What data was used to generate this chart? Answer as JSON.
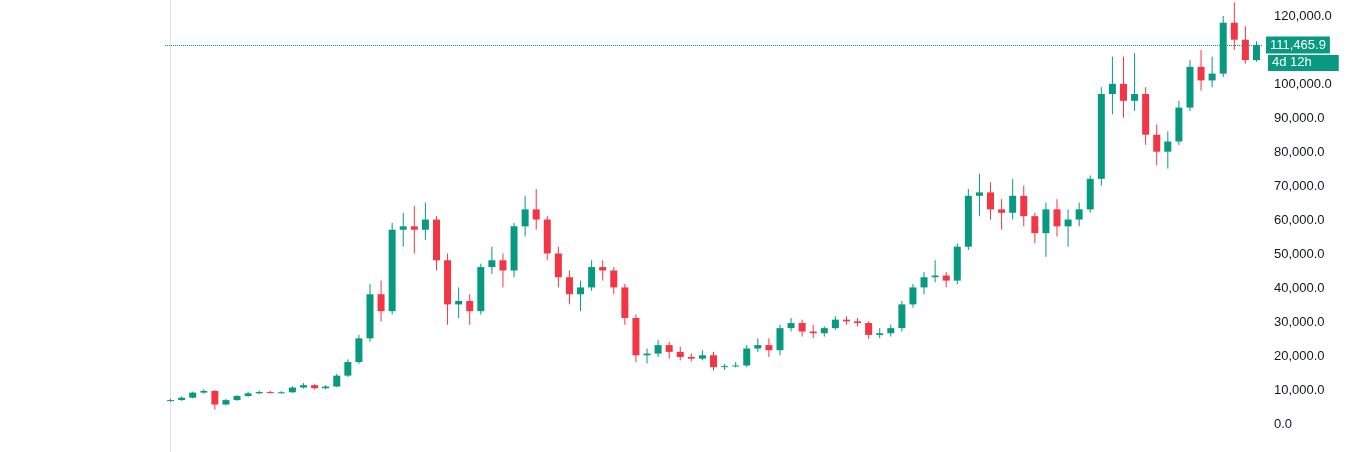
{
  "chart_data": {
    "type": "candlestick",
    "categories": [
      null,
      null,
      null,
      null,
      null,
      null,
      null,
      null,
      null,
      null,
      null,
      null,
      null,
      null,
      null,
      null,
      null,
      null,
      null,
      null,
      null,
      null,
      null,
      null,
      null,
      null,
      null,
      null,
      null,
      null,
      null,
      null,
      null,
      null,
      null,
      null,
      null,
      null,
      null,
      null,
      null,
      null,
      null,
      null,
      null,
      null,
      null,
      null,
      null,
      null,
      null,
      null,
      null,
      null,
      null,
      null,
      null,
      null,
      null,
      null,
      null,
      null,
      null,
      null,
      null,
      null,
      null,
      null,
      null,
      null,
      null,
      null,
      null,
      null,
      null,
      null,
      null,
      null,
      null,
      null,
      null,
      null,
      null,
      null,
      null,
      null,
      null,
      null,
      null,
      null,
      null,
      null,
      null,
      null,
      null,
      null,
      null,
      null,
      null
    ],
    "ohlc": [
      [
        6500,
        7200,
        6300,
        6800
      ],
      [
        6800,
        7900,
        6600,
        7500
      ],
      [
        7500,
        9300,
        7300,
        9000
      ],
      [
        9000,
        10000,
        8700,
        9500
      ],
      [
        9500,
        9700,
        4000,
        5500
      ],
      [
        5500,
        7100,
        5200,
        6800
      ],
      [
        6800,
        8300,
        6600,
        8000
      ],
      [
        8000,
        9300,
        7700,
        8800
      ],
      [
        8800,
        9600,
        8500,
        9200
      ],
      [
        9200,
        9500,
        8700,
        9000
      ],
      [
        9000,
        9400,
        8700,
        9100
      ],
      [
        9100,
        10900,
        8900,
        10500
      ],
      [
        10500,
        11800,
        10200,
        11200
      ],
      [
        11200,
        11500,
        9900,
        10300
      ],
      [
        10300,
        11200,
        10000,
        10800
      ],
      [
        10800,
        14500,
        10600,
        14000
      ],
      [
        14000,
        18800,
        13600,
        18000
      ],
      [
        18000,
        26000,
        17500,
        25000
      ],
      [
        25000,
        41000,
        24000,
        38000
      ],
      [
        38000,
        42000,
        30000,
        33000
      ],
      [
        33000,
        59000,
        32000,
        57000
      ],
      [
        57000,
        62000,
        52000,
        58000
      ],
      [
        58000,
        64000,
        50000,
        57000
      ],
      [
        57000,
        65000,
        54000,
        60000
      ],
      [
        60000,
        61000,
        45000,
        48000
      ],
      [
        48000,
        50000,
        29000,
        35000
      ],
      [
        35000,
        40000,
        31000,
        36000
      ],
      [
        36000,
        38000,
        29000,
        33000
      ],
      [
        33000,
        47000,
        32000,
        46000
      ],
      [
        46000,
        52000,
        44000,
        48000
      ],
      [
        48000,
        50000,
        40000,
        45000
      ],
      [
        45000,
        59000,
        43000,
        58000
      ],
      [
        58000,
        67000,
        55000,
        63000
      ],
      [
        63000,
        69000,
        57000,
        60000
      ],
      [
        60000,
        61000,
        48000,
        50000
      ],
      [
        50000,
        52000,
        40000,
        43000
      ],
      [
        43000,
        45000,
        35000,
        38000
      ],
      [
        38000,
        42000,
        33000,
        40000
      ],
      [
        40000,
        48000,
        39000,
        46000
      ],
      [
        46000,
        48000,
        42000,
        45000
      ],
      [
        45000,
        46000,
        38000,
        40000
      ],
      [
        40000,
        41000,
        29000,
        31000
      ],
      [
        31000,
        32000,
        18000,
        20000
      ],
      [
        20000,
        22000,
        17600,
        20500
      ],
      [
        20500,
        24500,
        19500,
        23000
      ],
      [
        23000,
        24000,
        19000,
        21000
      ],
      [
        21000,
        22500,
        18500,
        19500
      ],
      [
        19500,
        20500,
        18200,
        19000
      ],
      [
        19000,
        21500,
        18500,
        20000
      ],
      [
        20000,
        21000,
        15500,
        16500
      ],
      [
        16500,
        17500,
        15700,
        16800
      ],
      [
        16800,
        18000,
        16400,
        17000
      ],
      [
        17000,
        23000,
        16500,
        22000
      ],
      [
        22000,
        25000,
        21000,
        23000
      ],
      [
        23000,
        25000,
        19500,
        21500
      ],
      [
        21500,
        29000,
        20000,
        28000
      ],
      [
        28000,
        31000,
        27000,
        29500
      ],
      [
        29500,
        30500,
        25500,
        27000
      ],
      [
        27000,
        29000,
        25000,
        26500
      ],
      [
        26500,
        28500,
        25500,
        28000
      ],
      [
        28000,
        31500,
        27500,
        30500
      ],
      [
        30500,
        31500,
        29000,
        30000
      ],
      [
        30000,
        31000,
        28500,
        29500
      ],
      [
        29500,
        30000,
        24800,
        26000
      ],
      [
        26000,
        28000,
        25000,
        26500
      ],
      [
        26500,
        29000,
        25500,
        28000
      ],
      [
        28000,
        36000,
        27000,
        35000
      ],
      [
        35000,
        41000,
        34000,
        40000
      ],
      [
        40000,
        44500,
        38000,
        43000
      ],
      [
        43000,
        48000,
        41500,
        43500
      ],
      [
        43500,
        44500,
        40000,
        42000
      ],
      [
        42000,
        53000,
        41000,
        52000
      ],
      [
        52000,
        69000,
        51000,
        67000
      ],
      [
        67000,
        73500,
        61000,
        68000
      ],
      [
        68000,
        71000,
        60000,
        63000
      ],
      [
        63000,
        66000,
        57000,
        62000
      ],
      [
        62000,
        72000,
        60000,
        67000
      ],
      [
        67000,
        70000,
        58000,
        61000
      ],
      [
        61000,
        62000,
        53000,
        56000
      ],
      [
        56000,
        65000,
        49000,
        63000
      ],
      [
        63000,
        66000,
        55000,
        58000
      ],
      [
        58000,
        63000,
        52000,
        60000
      ],
      [
        60000,
        65000,
        58000,
        63000
      ],
      [
        63000,
        73000,
        62000,
        72000
      ],
      [
        72000,
        99000,
        70000,
        97000
      ],
      [
        97000,
        108000,
        91000,
        100000
      ],
      [
        100000,
        108000,
        90000,
        95000
      ],
      [
        95000,
        109000,
        92000,
        97000
      ],
      [
        97000,
        99000,
        82000,
        85000
      ],
      [
        85000,
        88000,
        76000,
        80000
      ],
      [
        80000,
        86000,
        75000,
        83000
      ],
      [
        83000,
        95000,
        82000,
        93000
      ],
      [
        93000,
        107000,
        92000,
        105000
      ],
      [
        105000,
        110000,
        98000,
        101000
      ],
      [
        101000,
        108000,
        99000,
        103000
      ],
      [
        103000,
        120000,
        102000,
        118000
      ],
      [
        118000,
        124000,
        110000,
        113000
      ],
      [
        113000,
        117000,
        106000,
        107000
      ],
      [
        107000,
        112500,
        106500,
        111465.9
      ]
    ],
    "colors": [
      "#089981",
      "#089981",
      "#089981",
      "#089981",
      "#f23645",
      "#089981",
      "#089981",
      "#089981",
      "#089981",
      "#f23645",
      "#089981",
      "#089981",
      "#089981",
      "#f23645",
      "#089981",
      "#089981",
      "#089981",
      "#089981",
      "#089981",
      "#f23645",
      "#089981",
      "#089981",
      "#f23645",
      "#089981",
      "#f23645",
      "#f23645",
      "#089981",
      "#f23645",
      "#089981",
      "#089981",
      "#f23645",
      "#089981",
      "#089981",
      "#f23645",
      "#f23645",
      "#f23645",
      "#f23645",
      "#089981",
      "#089981",
      "#f23645",
      "#f23645",
      "#f23645",
      "#f23645",
      "#089981",
      "#089981",
      "#f23645",
      "#f23645",
      "#f23645",
      "#089981",
      "#f23645",
      "#089981",
      "#089981",
      "#089981",
      "#089981",
      "#f23645",
      "#089981",
      "#089981",
      "#f23645",
      "#f23645",
      "#089981",
      "#089981",
      "#f23645",
      "#f23645",
      "#f23645",
      "#089981",
      "#089981",
      "#089981",
      "#089981",
      "#089981",
      "#089981",
      "#f23645",
      "#089981",
      "#089981",
      "#089981",
      "#f23645",
      "#f23645",
      "#089981",
      "#f23645",
      "#f23645",
      "#089981",
      "#f23645",
      "#089981",
      "#089981",
      "#089981",
      "#089981",
      "#089981",
      "#f23645",
      "#089981",
      "#f23645",
      "#f23645",
      "#089981",
      "#089981",
      "#089981",
      "#f23645",
      "#089981",
      "#089981",
      "#f23645",
      "#f23645",
      "#089981"
    ],
    "ylim": [
      -8500,
      124700
    ],
    "yticks": [
      {
        "value": 0,
        "label": "0.0"
      },
      {
        "value": 10000,
        "label": "10,000.0"
      },
      {
        "value": 20000,
        "label": "20,000.0"
      },
      {
        "value": 30000,
        "label": "30,000.0"
      },
      {
        "value": 40000,
        "label": "40,000.0"
      },
      {
        "value": 50000,
        "label": "50,000.0"
      },
      {
        "value": 60000,
        "label": "60,000.0"
      },
      {
        "value": 70000,
        "label": "70,000.0"
      },
      {
        "value": 80000,
        "label": "80,000.0"
      },
      {
        "value": 90000,
        "label": "90,000.0"
      },
      {
        "value": 100000,
        "label": "100,000.0"
      },
      {
        "value": 120000,
        "label": "120,000.0"
      }
    ],
    "ref_lines": [
      {
        "axis": "y",
        "value": 111465.9,
        "label": "111,465.9",
        "color": "#089981",
        "line_style": "dotted"
      }
    ],
    "annotations": [
      "4d 12h"
    ],
    "tick_labels": "y"
  }
}
